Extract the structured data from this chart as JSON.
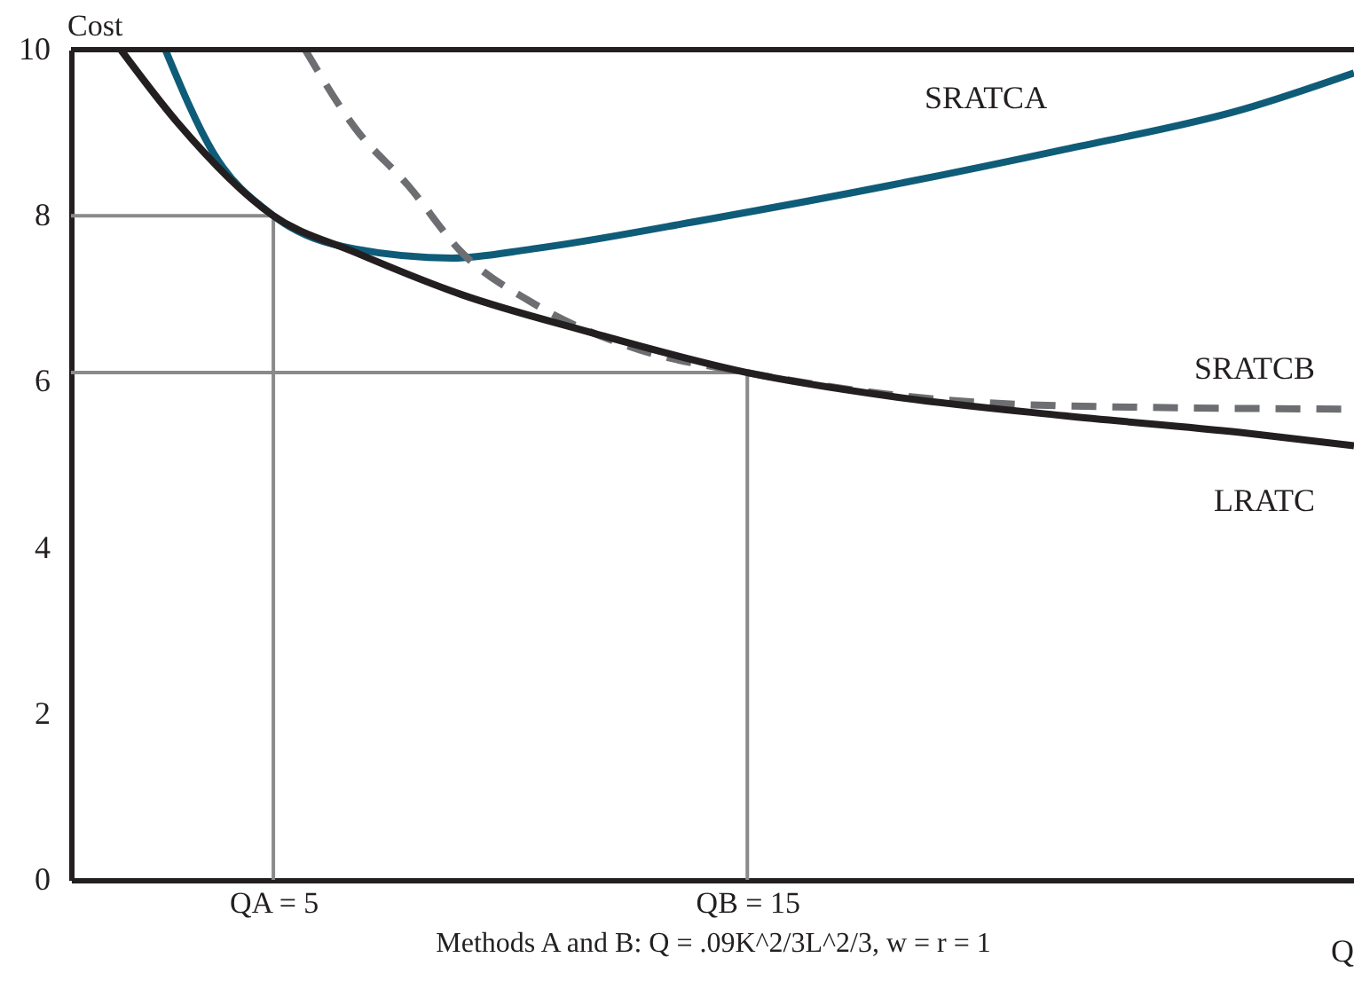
{
  "chart_data": {
    "type": "line",
    "ylabel": "Cost",
    "xlabel": "Methods A and B: Q = .09K^2/3L^2/3, w = r = 1",
    "xlim": [
      0.73,
      27.8
    ],
    "xticks": [
      {
        "value": 5,
        "label": "QA = 5"
      },
      {
        "value": 15,
        "label": "QB = 15"
      }
    ],
    "ylim": [
      0,
      10
    ],
    "yticks": [
      0,
      2,
      4,
      6,
      8,
      10
    ],
    "series": [
      {
        "name": "SRATCA",
        "color": "#0f5c78",
        "line_style": "solid",
        "x": [
          2.72,
          3.73,
          5,
          6.72,
          8.78,
          10.47,
          14.2,
          17.96,
          21.7,
          25.45,
          27.8
        ],
        "values": [
          10,
          8.76,
          8,
          7.6,
          7.49,
          7.6,
          7.96,
          8.36,
          8.8,
          9.28,
          9.72
        ]
      },
      {
        "name": "SRATCB",
        "color": "#6d6e71",
        "line_style": "dashed",
        "x": [
          5.67,
          6.72,
          7.85,
          8.97,
          10.47,
          12.7,
          15,
          17.96,
          21.7,
          27.8
        ],
        "values": [
          10,
          9.06,
          8.36,
          7.56,
          6.95,
          6.39,
          6.11,
          5.85,
          5.71,
          5.67
        ]
      },
      {
        "name": "LRATC",
        "color": "#231f20",
        "line_style": "solid",
        "x": [
          1.78,
          2.98,
          5,
          6.72,
          8.97,
          11.6,
          15,
          17.96,
          21.7,
          25.4,
          27.8
        ],
        "values": [
          10,
          9.12,
          8,
          7.56,
          7.05,
          6.61,
          6.11,
          5.83,
          5.59,
          5.39,
          5.23
        ]
      }
    ],
    "ref_lines": [
      {
        "axis": "x",
        "value": 5,
        "color": "#8a8a8c"
      },
      {
        "axis": "x",
        "value": 15,
        "color": "#8a8a8c"
      },
      {
        "axis": "y",
        "value": 8,
        "color": "#8a8a8c"
      },
      {
        "axis": "y",
        "value": 6.11,
        "color": "#8a8a8c"
      }
    ],
    "annotations": [
      "Q"
    ]
  }
}
